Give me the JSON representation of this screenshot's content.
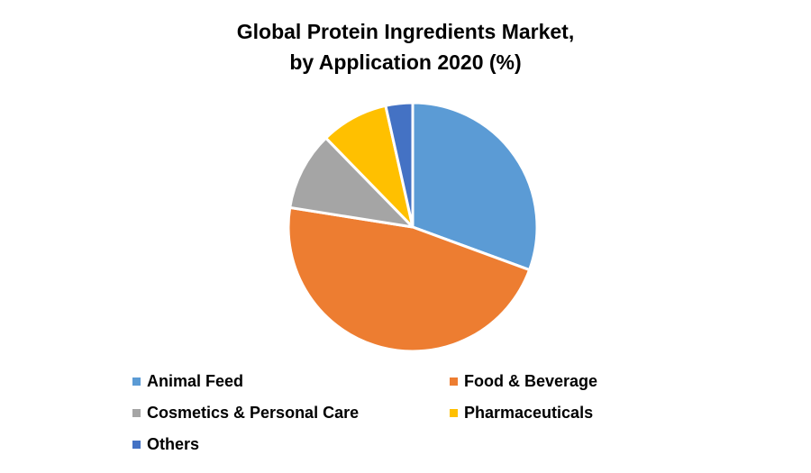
{
  "title": {
    "line1": "Global Protein Ingredients Market,",
    "line2": "by Application 2020 (%)"
  },
  "legend": [
    {
      "label": "Animal Feed",
      "color": "#5B9BD5"
    },
    {
      "label": "Food & Beverage",
      "color": "#ED7D31"
    },
    {
      "label": "Cosmetics & Personal Care",
      "color": "#A5A5A5"
    },
    {
      "label": "Pharmaceuticals",
      "color": "#FFC000"
    },
    {
      "label": "Others",
      "color": "#4472C4"
    }
  ],
  "chart_data": {
    "type": "pie",
    "title": "Global Protein Ingredients Market, by Application 2020 (%)",
    "categories": [
      "Animal Feed",
      "Food & Beverage",
      "Cosmetics & Personal Care",
      "Pharmaceuticals",
      "Others"
    ],
    "values": [
      30.6,
      46.9,
      10.2,
      8.8,
      3.5
    ],
    "colors": [
      "#5B9BD5",
      "#ED7D31",
      "#A5A5A5",
      "#FFC000",
      "#4472C4"
    ],
    "start_angle": "12 o'clock, clockwise",
    "data_labels": false,
    "legend_position": "bottom"
  }
}
